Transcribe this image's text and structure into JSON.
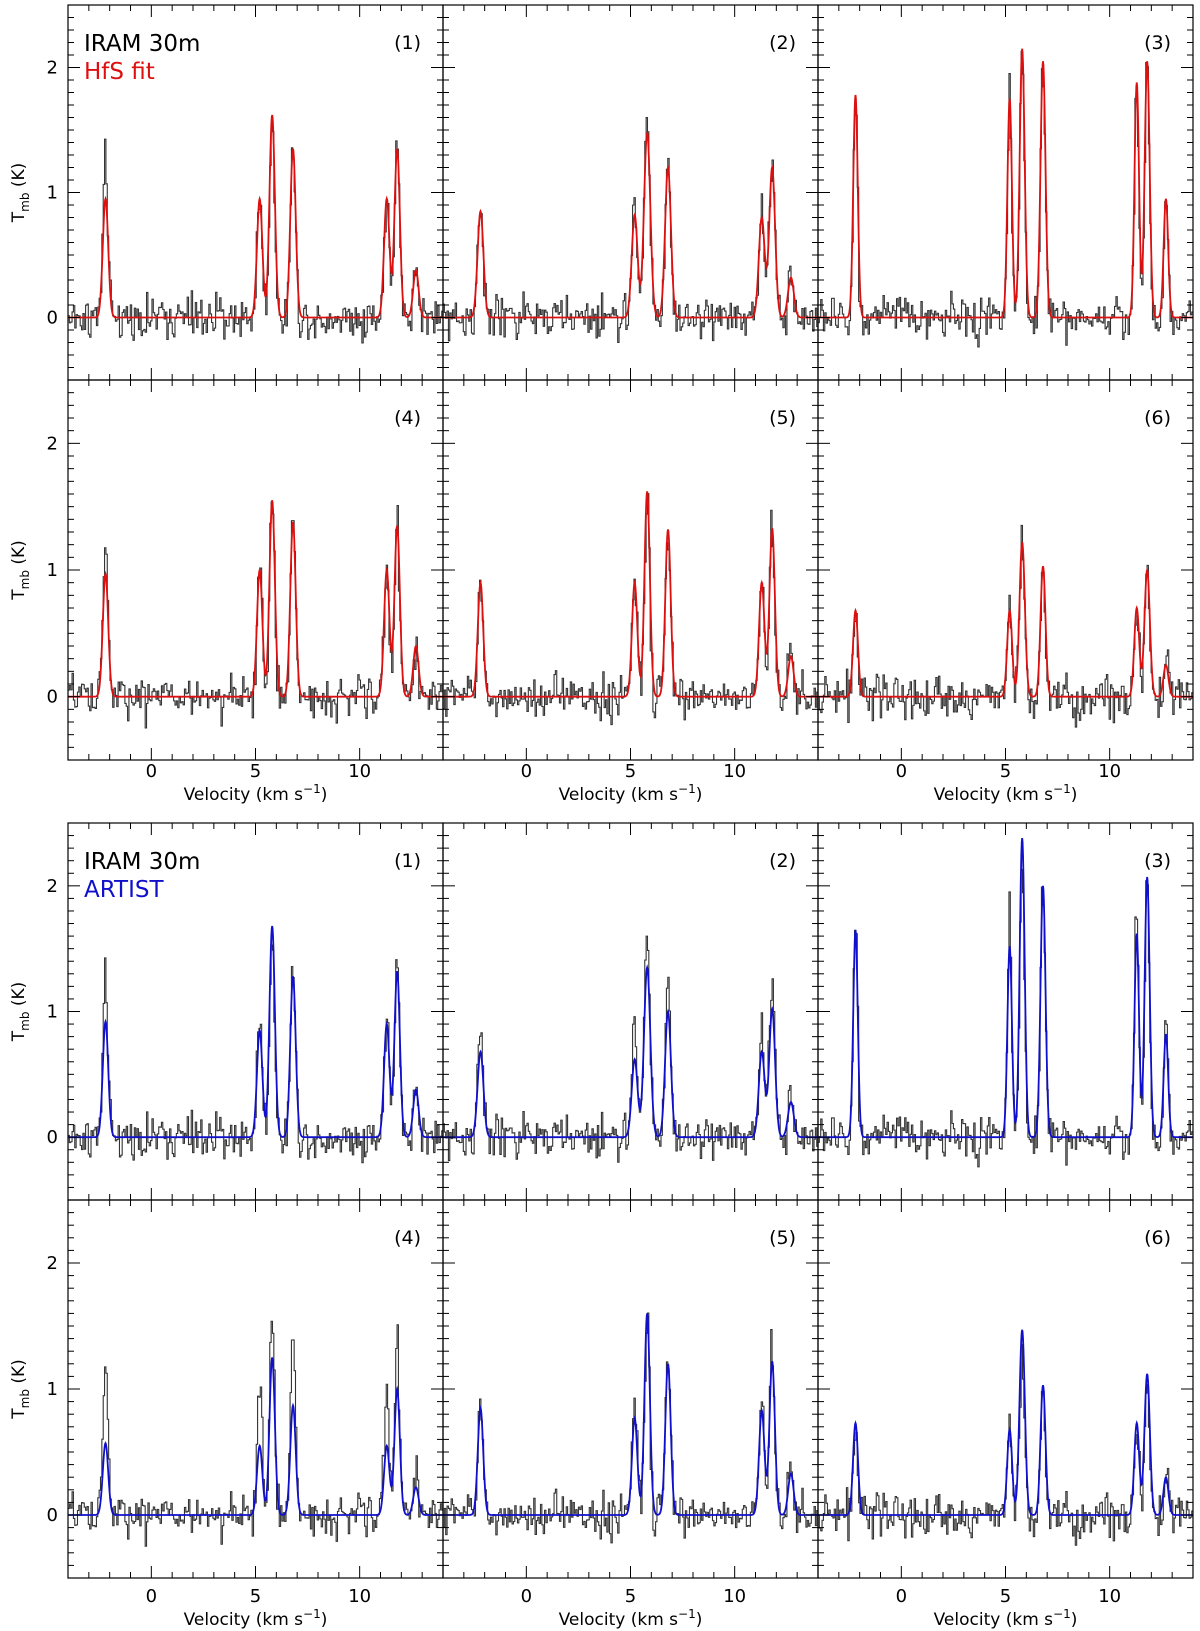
{
  "figure": {
    "colors": {
      "observed": "#333333",
      "hfs": "#dd1010",
      "artist": "#1010cc",
      "frame": "#000000"
    }
  },
  "chart_data": [
    {
      "type": "line",
      "block_name": "hfs-block",
      "telescope_label": "IRAM 30m",
      "model_label": "HfS fit",
      "model_color": "#dd1010",
      "xlabel": "Velocity (km s",
      "xlabel_sup": "−1",
      "xlabel_end": ")",
      "ylabel_main": "T",
      "ylabel_sub": "mb",
      "ylabel_end": " (K)",
      "xlim": [
        -4,
        14
      ],
      "ylim": [
        -0.5,
        2.5
      ],
      "xticks": [
        0,
        5,
        10
      ],
      "yticks": [
        0,
        1,
        2
      ],
      "xtick_labels": [
        "0",
        "5",
        "10"
      ],
      "ytick_labels": [
        "0",
        "1",
        "2"
      ],
      "panels": [
        {
          "label": "(1)",
          "obs_amps": [
            1.22,
            0.97,
            1.62,
            1.35,
            0.96,
            1.35,
            0.4
          ],
          "model_amps": [
            0.95,
            0.95,
            1.62,
            1.35,
            0.95,
            1.35,
            0.38
          ],
          "widths": [
            0.12,
            0.12,
            0.12,
            0.12,
            0.12,
            0.12,
            0.12
          ]
        },
        {
          "label": "(2)",
          "obs_amps": [
            0.82,
            0.85,
            1.62,
            1.22,
            0.83,
            1.2,
            0.32
          ],
          "model_amps": [
            0.85,
            0.82,
            1.48,
            1.2,
            0.8,
            1.2,
            0.32
          ],
          "widths": [
            0.13,
            0.13,
            0.14,
            0.13,
            0.13,
            0.13,
            0.13
          ]
        },
        {
          "label": "(3)",
          "obs_amps": [
            1.78,
            1.75,
            2.22,
            2.05,
            1.88,
            2.05,
            0.95
          ],
          "model_amps": [
            1.78,
            1.75,
            2.15,
            2.05,
            1.88,
            2.05,
            0.95
          ],
          "widths": [
            0.1,
            0.1,
            0.11,
            0.11,
            0.1,
            0.11,
            0.1
          ]
        },
        {
          "label": "(4)",
          "obs_amps": [
            1.17,
            1.0,
            1.55,
            1.45,
            1.0,
            1.35,
            0.42
          ],
          "model_amps": [
            0.97,
            1.0,
            1.55,
            1.38,
            1.0,
            1.35,
            0.4
          ],
          "widths": [
            0.12,
            0.12,
            0.12,
            0.12,
            0.12,
            0.12,
            0.12
          ]
        },
        {
          "label": "(5)",
          "obs_amps": [
            0.9,
            0.9,
            1.63,
            1.33,
            0.92,
            1.33,
            0.35
          ],
          "model_amps": [
            0.9,
            0.9,
            1.62,
            1.32,
            0.9,
            1.33,
            0.32
          ],
          "widths": [
            0.12,
            0.12,
            0.12,
            0.12,
            0.12,
            0.12,
            0.12
          ]
        },
        {
          "label": "(6)",
          "obs_amps": [
            0.68,
            0.68,
            1.23,
            1.03,
            0.72,
            1.0,
            0.27
          ],
          "model_amps": [
            0.68,
            0.68,
            1.22,
            1.03,
            0.7,
            1.0,
            0.25
          ],
          "widths": [
            0.11,
            0.11,
            0.12,
            0.11,
            0.11,
            0.12,
            0.11
          ]
        }
      ]
    },
    {
      "type": "line",
      "block_name": "artist-block",
      "telescope_label": "IRAM 30m",
      "model_label": "ARTIST",
      "model_color": "#1010cc",
      "xlabel": "Velocity (km s",
      "xlabel_sup": "−1",
      "xlabel_end": ")",
      "ylabel_main": "T",
      "ylabel_sub": "mb",
      "ylabel_end": " (K)",
      "xlim": [
        -4,
        14
      ],
      "ylim": [
        -0.5,
        2.5
      ],
      "xticks": [
        0,
        5,
        10
      ],
      "yticks": [
        0,
        1,
        2
      ],
      "xtick_labels": [
        "0",
        "5",
        "10"
      ],
      "ytick_labels": [
        "0",
        "1",
        "2"
      ],
      "panels": [
        {
          "label": "(1)",
          "obs_amps": [
            1.22,
            0.97,
            1.62,
            1.35,
            0.96,
            1.35,
            0.4
          ],
          "model_amps": [
            0.92,
            0.85,
            1.68,
            1.28,
            0.9,
            1.32,
            0.38
          ],
          "widths": [
            0.12,
            0.12,
            0.12,
            0.12,
            0.12,
            0.12,
            0.12
          ]
        },
        {
          "label": "(2)",
          "obs_amps": [
            0.82,
            0.85,
            1.62,
            1.22,
            0.83,
            1.2,
            0.32
          ],
          "model_amps": [
            0.68,
            0.62,
            1.35,
            1.0,
            0.68,
            1.02,
            0.28
          ],
          "widths": [
            0.13,
            0.13,
            0.14,
            0.13,
            0.13,
            0.13,
            0.13
          ]
        },
        {
          "label": "(3)",
          "obs_amps": [
            1.78,
            1.75,
            2.22,
            2.05,
            1.88,
            2.05,
            0.95
          ],
          "model_amps": [
            1.65,
            1.52,
            2.38,
            2.0,
            1.62,
            2.07,
            0.82
          ],
          "widths": [
            0.1,
            0.1,
            0.11,
            0.11,
            0.1,
            0.11,
            0.1
          ]
        },
        {
          "label": "(4)",
          "obs_amps": [
            1.17,
            1.0,
            1.55,
            1.45,
            1.0,
            1.35,
            0.42
          ],
          "model_amps": [
            0.57,
            0.55,
            1.25,
            0.87,
            0.55,
            1.0,
            0.22
          ],
          "widths": [
            0.12,
            0.12,
            0.12,
            0.12,
            0.12,
            0.12,
            0.12
          ]
        },
        {
          "label": "(5)",
          "obs_amps": [
            0.9,
            0.9,
            1.63,
            1.33,
            0.92,
            1.33,
            0.35
          ],
          "model_amps": [
            0.85,
            0.77,
            1.6,
            1.2,
            0.83,
            1.22,
            0.33
          ],
          "widths": [
            0.12,
            0.12,
            0.12,
            0.12,
            0.12,
            0.12,
            0.12
          ]
        },
        {
          "label": "(6)",
          "obs_amps": [
            0.68,
            0.68,
            1.23,
            1.03,
            0.72,
            1.0,
            0.27
          ],
          "model_amps": [
            0.73,
            0.68,
            1.47,
            1.03,
            0.73,
            1.12,
            0.3
          ],
          "widths": [
            0.11,
            0.11,
            0.12,
            0.11,
            0.11,
            0.12,
            0.11
          ]
        }
      ]
    }
  ],
  "line_centers_kms": [
    -2.2,
    5.2,
    5.8,
    6.8,
    11.3,
    11.8,
    12.7
  ],
  "noise_rms_K": 0.12
}
